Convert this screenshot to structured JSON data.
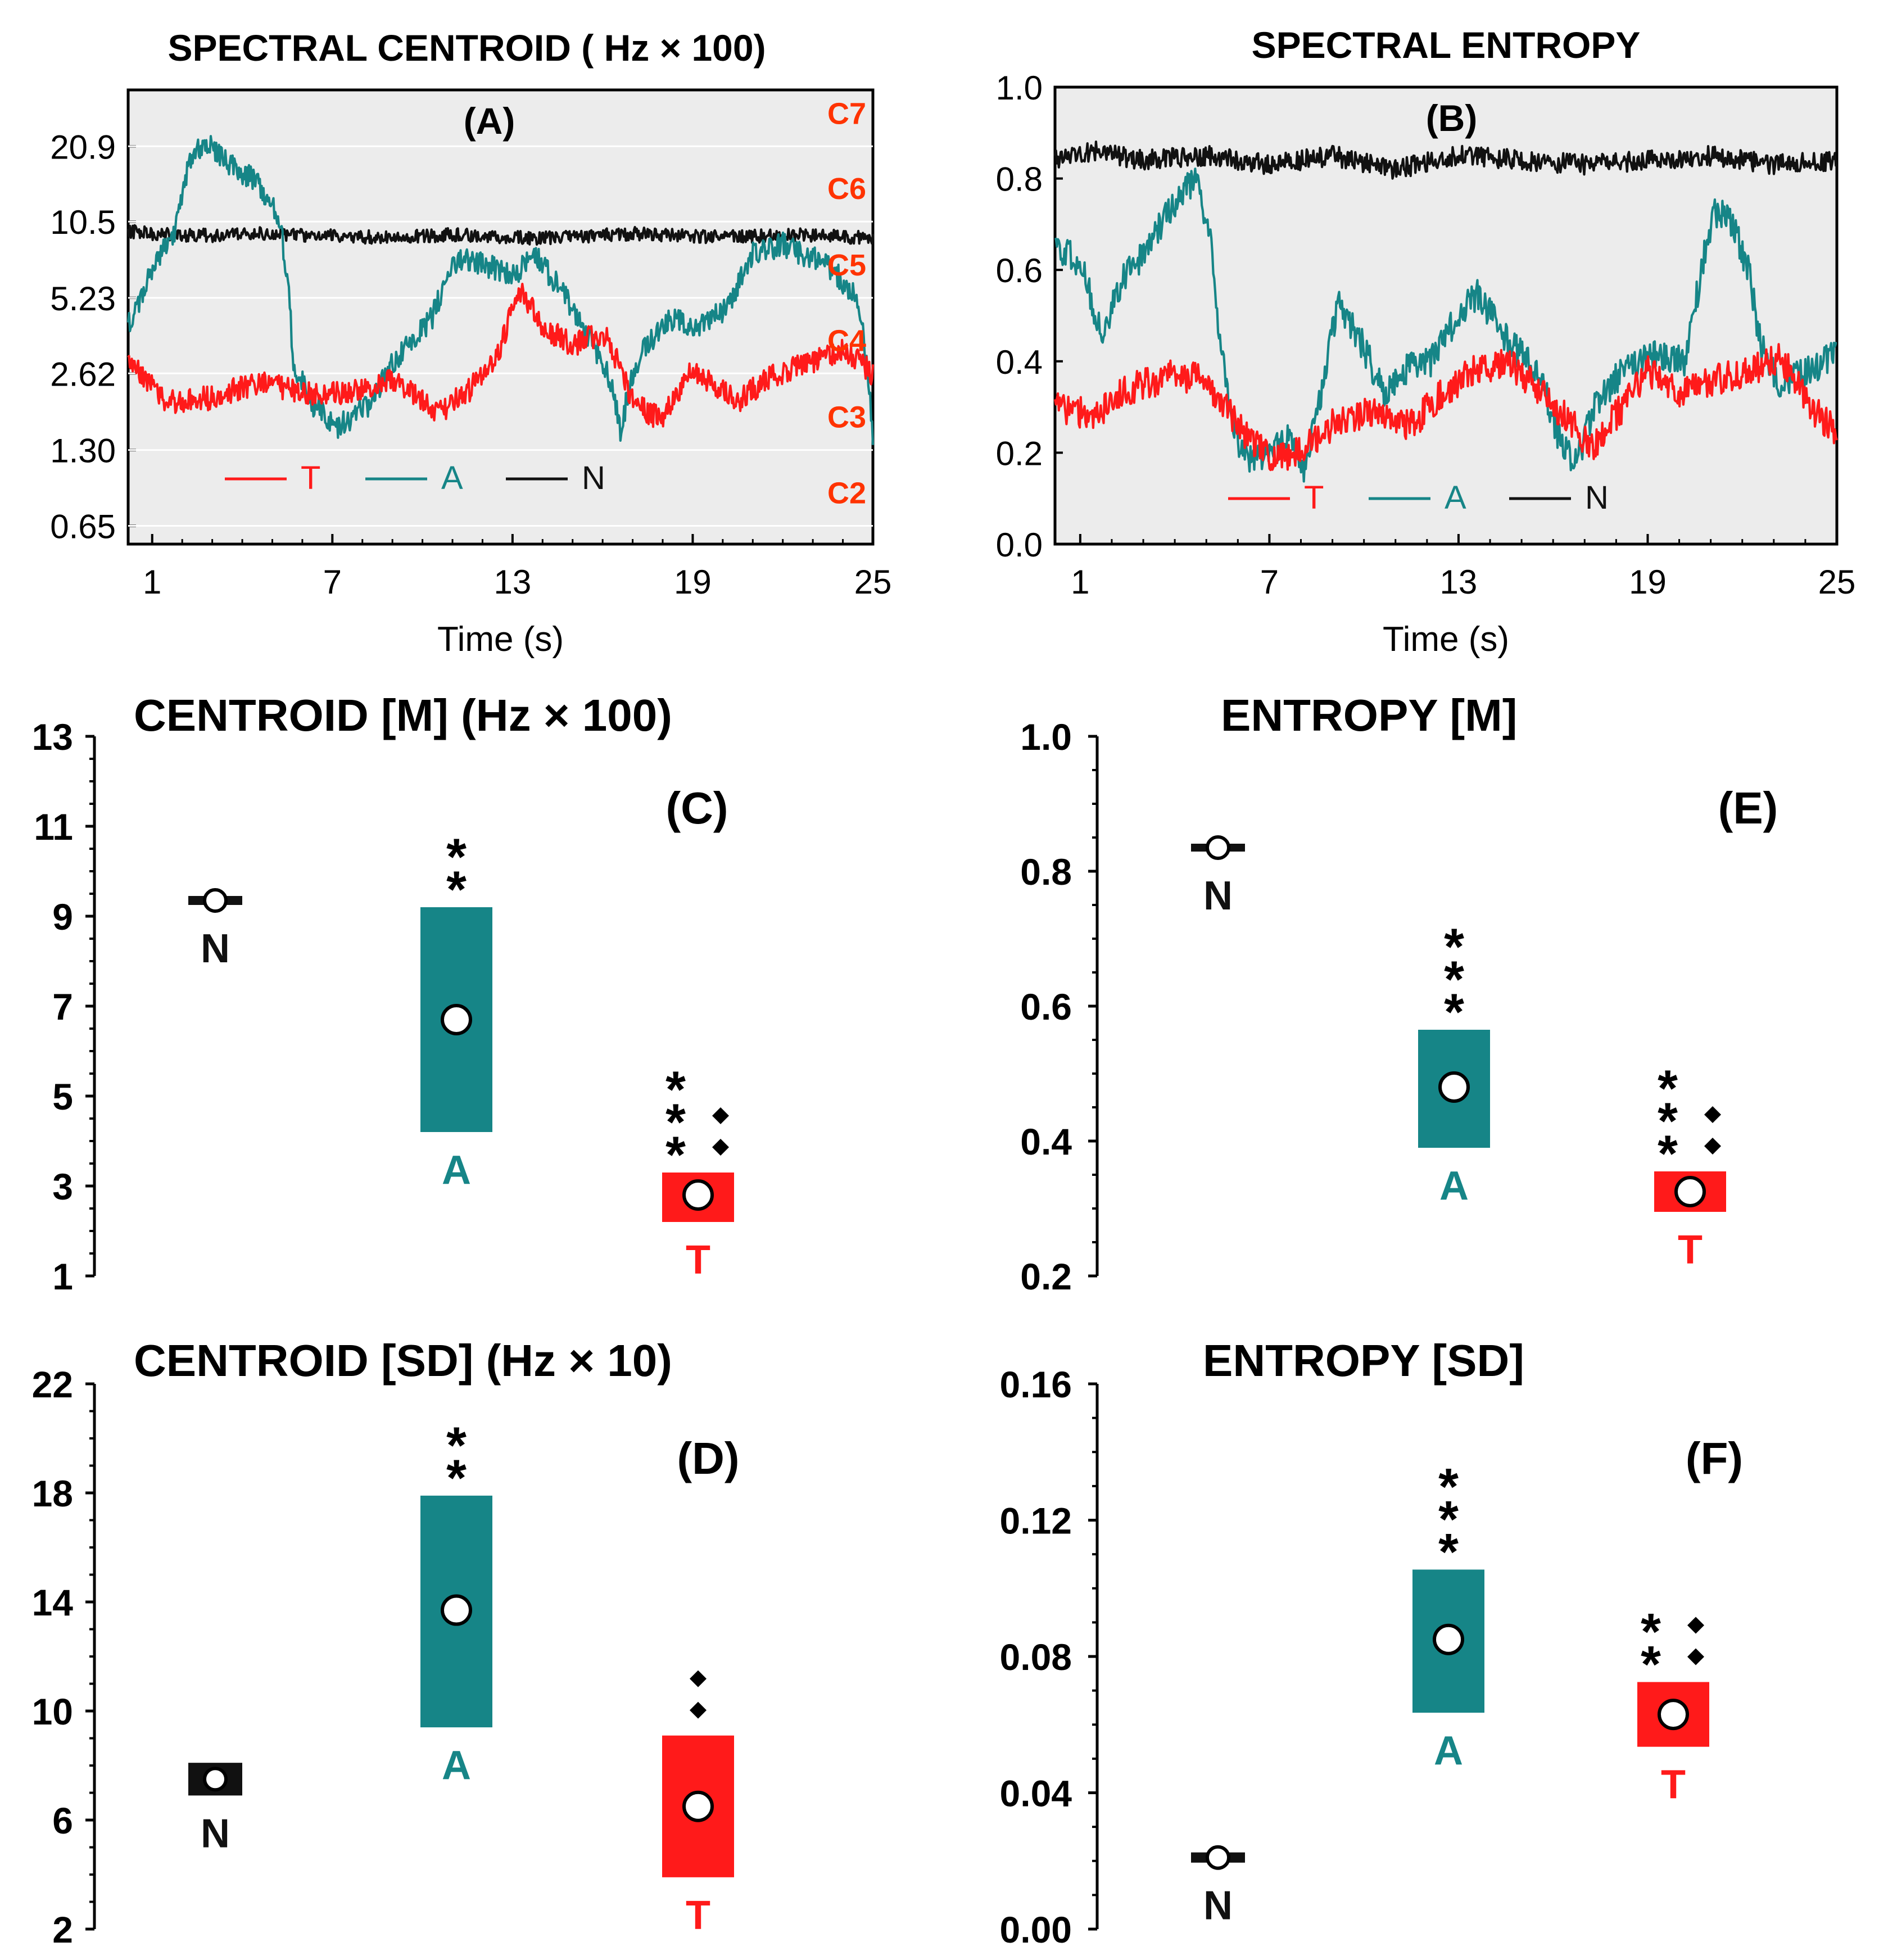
{
  "colors": {
    "T": "#ff1a1a",
    "A": "#168587",
    "N": "#111111",
    "note": "#ff3300",
    "panel_bg": "#ececec"
  },
  "chart_data": [
    {
      "id": "A",
      "type": "line",
      "title": "SPECTRAL CENTROID  ( Hz × 100)",
      "panel_label": "(A)",
      "xlabel": "Time (s)",
      "ylabel": "",
      "x_ticks": [
        "1",
        "7",
        "13",
        "19",
        "25"
      ],
      "xlim": [
        0.2,
        25
      ],
      "y_scale": "log2",
      "y_ticks": [
        "20.9",
        "10.5",
        "5.23",
        "2.62",
        "1.30",
        "0.65"
      ],
      "ylim": [
        0.55,
        35
      ],
      "note_labels": [
        "C7",
        "C6",
        "C5",
        "C4",
        "C3",
        "C2"
      ],
      "legend": [
        "T",
        "A",
        "N"
      ],
      "series": [
        {
          "name": "T",
          "keyframes": [
            [
              0.2,
              2.9
            ],
            [
              1.5,
              2.0
            ],
            [
              3,
              2.1
            ],
            [
              4.5,
              2.4
            ],
            [
              6,
              2.2
            ],
            [
              7.5,
              2.2
            ],
            [
              9,
              2.5
            ],
            [
              10.5,
              1.8
            ],
            [
              11.5,
              2.2
            ],
            [
              12.5,
              3.1
            ],
            [
              13.3,
              5.5
            ],
            [
              14,
              4.0
            ],
            [
              15,
              3.4
            ],
            [
              16,
              3.8
            ],
            [
              17,
              2.0
            ],
            [
              18,
              1.7
            ],
            [
              19,
              2.7
            ],
            [
              20.5,
              2.0
            ],
            [
              21.5,
              2.5
            ],
            [
              23,
              2.9
            ],
            [
              24,
              3.3
            ],
            [
              25,
              2.6
            ]
          ]
        },
        {
          "name": "A",
          "keyframes": [
            [
              0.2,
              4.0
            ],
            [
              1,
              6.5
            ],
            [
              1.8,
              10
            ],
            [
              2.2,
              17
            ],
            [
              2.7,
              22
            ],
            [
              3.5,
              18
            ],
            [
              4.5,
              15
            ],
            [
              5.2,
              11
            ],
            [
              5.7,
              2.8
            ],
            [
              6.3,
              2.0
            ],
            [
              7.2,
              1.6
            ],
            [
              8.3,
              2.0
            ],
            [
              9.3,
              3.2
            ],
            [
              10.3,
              4.3
            ],
            [
              11.2,
              7.6
            ],
            [
              12.2,
              7.0
            ],
            [
              13,
              6.5
            ],
            [
              13.8,
              7.5
            ],
            [
              14.6,
              5.6
            ],
            [
              15.4,
              3.9
            ],
            [
              16.2,
              2.5
            ],
            [
              16.6,
              1.55
            ],
            [
              17.2,
              3.0
            ],
            [
              18.2,
              4.3
            ],
            [
              19.2,
              4.0
            ],
            [
              20.2,
              4.8
            ],
            [
              21,
              7.9
            ],
            [
              22,
              8.5
            ],
            [
              23,
              7.5
            ],
            [
              23.8,
              6.5
            ],
            [
              24.5,
              5.0
            ],
            [
              25,
              1.4
            ]
          ]
        },
        {
          "name": "N",
          "keyframes": [
            [
              0.2,
              9.6
            ],
            [
              2,
              9.2
            ],
            [
              5,
              9.4
            ],
            [
              8,
              9.1
            ],
            [
              11,
              9.3
            ],
            [
              14,
              9.0
            ],
            [
              17,
              9.4
            ],
            [
              20,
              9.1
            ],
            [
              23,
              9.3
            ],
            [
              25,
              9.0
            ]
          ]
        }
      ]
    },
    {
      "id": "B",
      "type": "line",
      "title": "SPECTRAL ENTROPY",
      "panel_label": "(B)",
      "xlabel": "Time (s)",
      "ylabel": "",
      "x_ticks": [
        "1",
        "7",
        "13",
        "19",
        "25"
      ],
      "xlim": [
        0.2,
        25
      ],
      "y_ticks": [
        "1.0",
        "0.8",
        "0.6",
        "0.4",
        "0.2",
        "0.0"
      ],
      "ylim": [
        0,
        1
      ],
      "legend": [
        "T",
        "A",
        "N"
      ],
      "series": [
        {
          "name": "T",
          "keyframes": [
            [
              0.2,
              0.3
            ],
            [
              1.5,
              0.28
            ],
            [
              2.5,
              0.34
            ],
            [
              4,
              0.37
            ],
            [
              5,
              0.36
            ],
            [
              5.8,
              0.28
            ],
            [
              6.5,
              0.22
            ],
            [
              7.2,
              0.18
            ],
            [
              8.2,
              0.22
            ],
            [
              9.2,
              0.27
            ],
            [
              10.5,
              0.29
            ],
            [
              11.5,
              0.26
            ],
            [
              12.5,
              0.33
            ],
            [
              13.5,
              0.38
            ],
            [
              14.5,
              0.4
            ],
            [
              15.5,
              0.34
            ],
            [
              16.5,
              0.27
            ],
            [
              17.2,
              0.21
            ],
            [
              18.2,
              0.3
            ],
            [
              19,
              0.38
            ],
            [
              20,
              0.33
            ],
            [
              21.2,
              0.36
            ],
            [
              22.2,
              0.38
            ],
            [
              23.2,
              0.41
            ],
            [
              24.2,
              0.3
            ],
            [
              25,
              0.24
            ]
          ]
        },
        {
          "name": "A",
          "keyframes": [
            [
              0.2,
              0.65
            ],
            [
              1,
              0.62
            ],
            [
              1.7,
              0.45
            ],
            [
              2.3,
              0.58
            ],
            [
              3.1,
              0.64
            ],
            [
              3.9,
              0.74
            ],
            [
              4.6,
              0.8
            ],
            [
              5.1,
              0.7
            ],
            [
              5.5,
              0.4
            ],
            [
              5.9,
              0.25
            ],
            [
              6.3,
              0.18
            ],
            [
              7.1,
              0.2
            ],
            [
              7.6,
              0.24
            ],
            [
              8.1,
              0.16
            ],
            [
              8.6,
              0.32
            ],
            [
              9.2,
              0.53
            ],
            [
              10,
              0.43
            ],
            [
              10.6,
              0.33
            ],
            [
              11.2,
              0.38
            ],
            [
              12.1,
              0.4
            ],
            [
              13,
              0.5
            ],
            [
              13.6,
              0.55
            ],
            [
              14.6,
              0.44
            ],
            [
              15.6,
              0.37
            ],
            [
              16.2,
              0.23
            ],
            [
              16.7,
              0.17
            ],
            [
              17.3,
              0.3
            ],
            [
              18.2,
              0.38
            ],
            [
              19.2,
              0.42
            ],
            [
              20.2,
              0.4
            ],
            [
              20.7,
              0.6
            ],
            [
              21.1,
              0.73
            ],
            [
              21.7,
              0.7
            ],
            [
              22.2,
              0.6
            ],
            [
              22.6,
              0.43
            ],
            [
              23.2,
              0.35
            ],
            [
              24.2,
              0.38
            ],
            [
              25,
              0.42
            ]
          ]
        },
        {
          "name": "N",
          "keyframes": [
            [
              0.2,
              0.84
            ],
            [
              1.5,
              0.86
            ],
            [
              3,
              0.84
            ],
            [
              5,
              0.85
            ],
            [
              7,
              0.83
            ],
            [
              9,
              0.85
            ],
            [
              11,
              0.82
            ],
            [
              13,
              0.85
            ],
            [
              15,
              0.84
            ],
            [
              17,
              0.83
            ],
            [
              19,
              0.84
            ],
            [
              21,
              0.85
            ],
            [
              23,
              0.83
            ],
            [
              25,
              0.84
            ]
          ]
        }
      ]
    },
    {
      "id": "C",
      "type": "box",
      "title": "CENTROID [M] (Hz × 100)",
      "panel_label": "(C)",
      "y_ticks": [
        "13",
        "11",
        "9",
        "7",
        "5",
        "3",
        "1"
      ],
      "ylim": [
        1,
        13
      ],
      "groups": [
        {
          "name": "N",
          "label": "N",
          "mean": 9.35,
          "low": 9.25,
          "high": 9.45,
          "stars": "",
          "diamonds": 0
        },
        {
          "name": "A",
          "label": "A",
          "mean": 6.7,
          "low": 4.2,
          "high": 9.2,
          "stars": "**",
          "diamonds": 0
        },
        {
          "name": "T",
          "label": "T",
          "mean": 2.8,
          "low": 2.2,
          "high": 3.3,
          "stars": "***",
          "diamonds": 2
        }
      ]
    },
    {
      "id": "D",
      "type": "box",
      "title": "CENTROID [SD] (Hz × 10)",
      "panel_label": "(D)",
      "y_ticks": [
        "22",
        "18",
        "14",
        "10",
        "6",
        "2"
      ],
      "ylim": [
        2,
        22
      ],
      "groups": [
        {
          "name": "N",
          "label": "N",
          "mean": 7.5,
          "low": 6.9,
          "high": 8.1,
          "stars": "",
          "diamonds": 0
        },
        {
          "name": "A",
          "label": "A",
          "mean": 13.7,
          "low": 9.4,
          "high": 17.9,
          "stars": "**",
          "diamonds": 0
        },
        {
          "name": "T",
          "label": "T",
          "mean": 6.5,
          "low": 3.9,
          "high": 9.1,
          "stars": "",
          "diamonds": 2
        }
      ]
    },
    {
      "id": "E",
      "type": "box",
      "title": "ENTROPY  [M]",
      "panel_label": "(E)",
      "y_ticks": [
        "1.0",
        "0.8",
        "0.6",
        "0.4",
        "0.2"
      ],
      "ylim": [
        0.2,
        1.0
      ],
      "groups": [
        {
          "name": "N",
          "label": "N",
          "mean": 0.835,
          "low": 0.833,
          "high": 0.837,
          "stars": "",
          "diamonds": 0
        },
        {
          "name": "A",
          "label": "A",
          "mean": 0.48,
          "low": 0.39,
          "high": 0.565,
          "stars": "***",
          "diamonds": 0
        },
        {
          "name": "T",
          "label": "T",
          "mean": 0.325,
          "low": 0.295,
          "high": 0.355,
          "stars": "***",
          "diamonds": 2
        }
      ]
    },
    {
      "id": "F",
      "type": "box",
      "title": "ENTROPY  [SD]",
      "panel_label": "(F)",
      "y_ticks": [
        "0.16",
        "0.12",
        "0.08",
        "0.04",
        "0.00"
      ],
      "ylim": [
        0,
        0.16
      ],
      "groups": [
        {
          "name": "N",
          "label": "N",
          "mean": 0.021,
          "low": 0.0195,
          "high": 0.0225,
          "stars": "",
          "diamonds": 0
        },
        {
          "name": "A",
          "label": "A",
          "mean": 0.085,
          "low": 0.0635,
          "high": 0.1055,
          "stars": "***",
          "diamonds": 0
        },
        {
          "name": "T",
          "label": "T",
          "mean": 0.063,
          "low": 0.0535,
          "high": 0.0725,
          "stars": "**",
          "diamonds": 2
        }
      ]
    }
  ]
}
